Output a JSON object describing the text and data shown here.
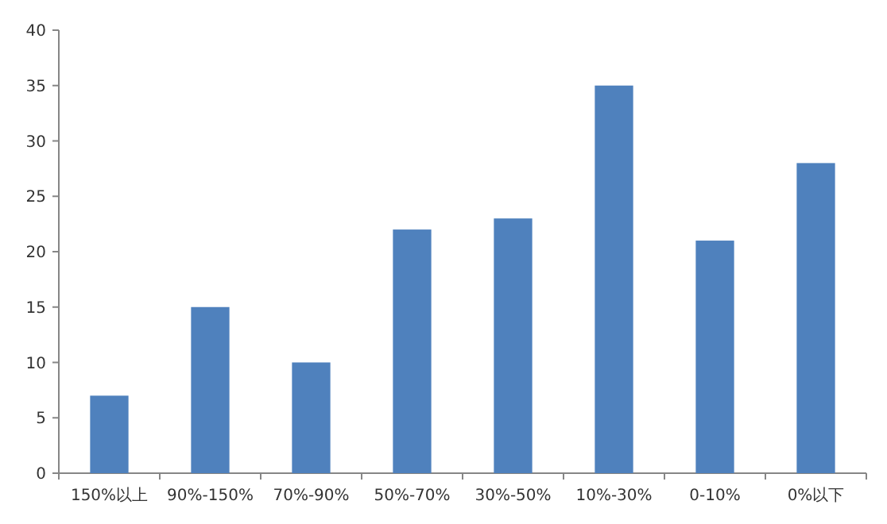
{
  "chart_data": {
    "type": "bar",
    "categories": [
      "150%以上",
      "90%-150%",
      "70%-90%",
      "50%-70%",
      "30%-50%",
      "10%-30%",
      "0-10%",
      "0%以下"
    ],
    "values": [
      7,
      15,
      10,
      22,
      23,
      35,
      21,
      28
    ],
    "color": "#4f81bd",
    "ylim": [
      0,
      40
    ],
    "yticks": [
      0,
      5,
      10,
      15,
      20,
      25,
      30,
      35,
      40
    ],
    "grid": false
  }
}
